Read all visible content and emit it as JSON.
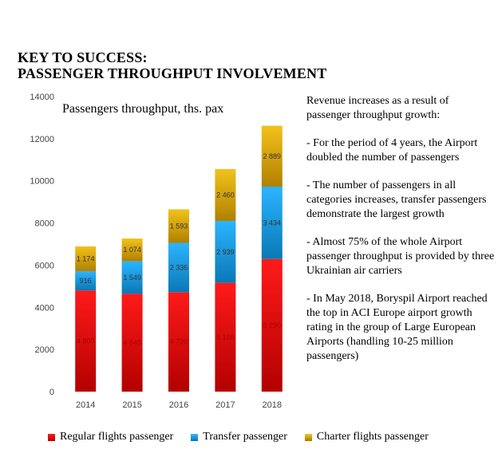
{
  "title_line1": "KEY TO SUCCESS:",
  "title_line2": "PASSENGER THROUGHPUT INVOLVEMENT",
  "colors": {
    "regular": "#e00000",
    "transfer": "#1a9de0",
    "charter": "#d9a300"
  },
  "chart_data": {
    "type": "bar",
    "stacked": true,
    "title": "Passengers throughput, ths. pax",
    "categories": [
      "2014",
      "2015",
      "2016",
      "2017",
      "2018"
    ],
    "ylim": [
      0,
      14000
    ],
    "yticks": [
      0,
      2000,
      4000,
      6000,
      8000,
      10000,
      12000,
      14000
    ],
    "grid": false,
    "legend_position": "bottom",
    "series": [
      {
        "name": "Regular flights passenger",
        "values": [
          4800,
          4640,
          4720,
          5160,
          6290
        ],
        "labels": [
          "4 800",
          "4 640",
          "4 720",
          "5 160",
          "6 290"
        ]
      },
      {
        "name": "Transfer passenger",
        "values": [
          916,
          1549,
          2336,
          2939,
          3434
        ],
        "labels": [
          "916",
          "1 549",
          "2 336",
          "2 939",
          "3 434"
        ]
      },
      {
        "name": "Charter flights passenger",
        "values": [
          1174,
          1074,
          1593,
          2460,
          2889
        ],
        "labels": [
          "1 174",
          "1 074",
          "1 593",
          "2 460",
          "2 889"
        ]
      }
    ]
  },
  "side_text": {
    "intro": "Revenue increases as a result of passenger throughput growth:",
    "point1": "-    For the period of 4 years, the Airport doubled the number of passengers",
    "point2": "-    The number of passengers in all categories increases, transfer passengers demonstrate the largest growth",
    "point3": "-    Almost 75% of the whole Airport passenger throughput is provided by three Ukrainian air carriers",
    "point4": "- In May 2018, Boryspil Airport reached the top in ACI Europe airport growth rating in the group of Large European Airports (handling 10-25 million passengers)"
  },
  "legend": {
    "regular": "Regular flights passenger",
    "transfer": "Transfer passenger",
    "charter": "Charter flights passenger"
  }
}
